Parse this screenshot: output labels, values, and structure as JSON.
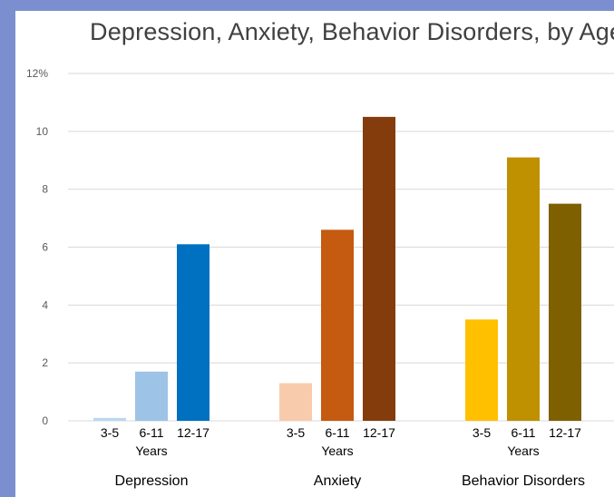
{
  "chart_data": {
    "type": "bar",
    "title": "Depression, Anxiety, Behavior Disorders, by Age",
    "ylim": [
      0,
      12
    ],
    "ytick_labels": [
      "0",
      "2",
      "4",
      "6",
      "8",
      "10",
      "12%"
    ],
    "grid": true,
    "legend": "none",
    "groups": [
      {
        "name": "Depression",
        "unit_label": "Years",
        "bars": [
          {
            "label": "3-5",
            "value": 0.1,
            "color": "#bdd7ee"
          },
          {
            "label": "6-11",
            "value": 1.7,
            "color": "#9dc3e6"
          },
          {
            "label": "12-17",
            "value": 6.1,
            "color": "#0070c0"
          }
        ]
      },
      {
        "name": "Anxiety",
        "unit_label": "Years",
        "bars": [
          {
            "label": "3-5",
            "value": 1.3,
            "color": "#f8cbad"
          },
          {
            "label": "6-11",
            "value": 6.6,
            "color": "#c55a11"
          },
          {
            "label": "12-17",
            "value": 10.5,
            "color": "#843c0c"
          }
        ]
      },
      {
        "name": "Behavior Disorders",
        "unit_label": "Years",
        "bars": [
          {
            "label": "3-5",
            "value": 3.5,
            "color": "#ffc000"
          },
          {
            "label": "6-11",
            "value": 9.1,
            "color": "#bf9000"
          },
          {
            "label": "12-17",
            "value": 7.5,
            "color": "#7f6000"
          }
        ]
      }
    ]
  },
  "colors": {
    "frame": "#7b8fd0",
    "gridline": "#d9d9d9"
  }
}
